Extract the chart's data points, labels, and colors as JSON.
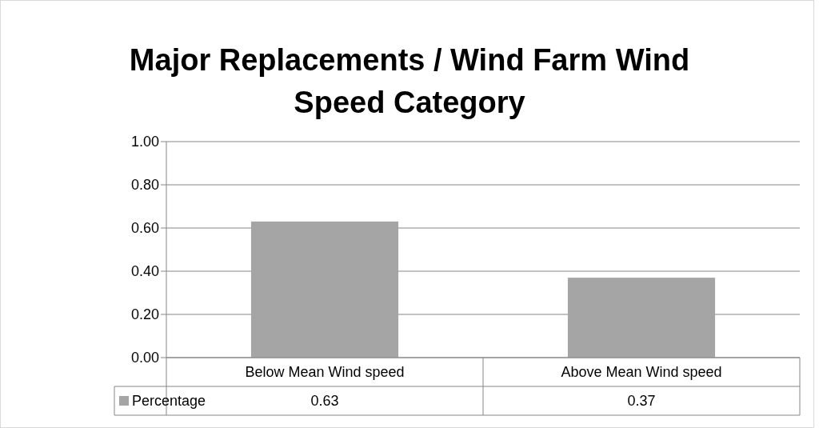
{
  "chart_data": {
    "type": "bar",
    "title": "Major Replacements / Wind Farm Wind Speed Category",
    "categories": [
      "Below Mean Wind speed",
      "Above Mean Wind speed"
    ],
    "series": [
      {
        "name": "Percentage",
        "color": "#a5a5a5",
        "values": [
          0.63,
          0.37
        ]
      }
    ],
    "ylim": [
      0,
      1
    ],
    "yticks": [
      {
        "value": 0,
        "label": "0.00"
      },
      {
        "value": 0.2,
        "label": "0.20"
      },
      {
        "value": 0.4,
        "label": "0.40"
      },
      {
        "value": 0.6,
        "label": "0.60"
      },
      {
        "value": 0.8,
        "label": "0.80"
      },
      {
        "value": 1,
        "label": "1.00"
      }
    ],
    "grid": "y",
    "legend": "bottom",
    "data_labels": true
  }
}
